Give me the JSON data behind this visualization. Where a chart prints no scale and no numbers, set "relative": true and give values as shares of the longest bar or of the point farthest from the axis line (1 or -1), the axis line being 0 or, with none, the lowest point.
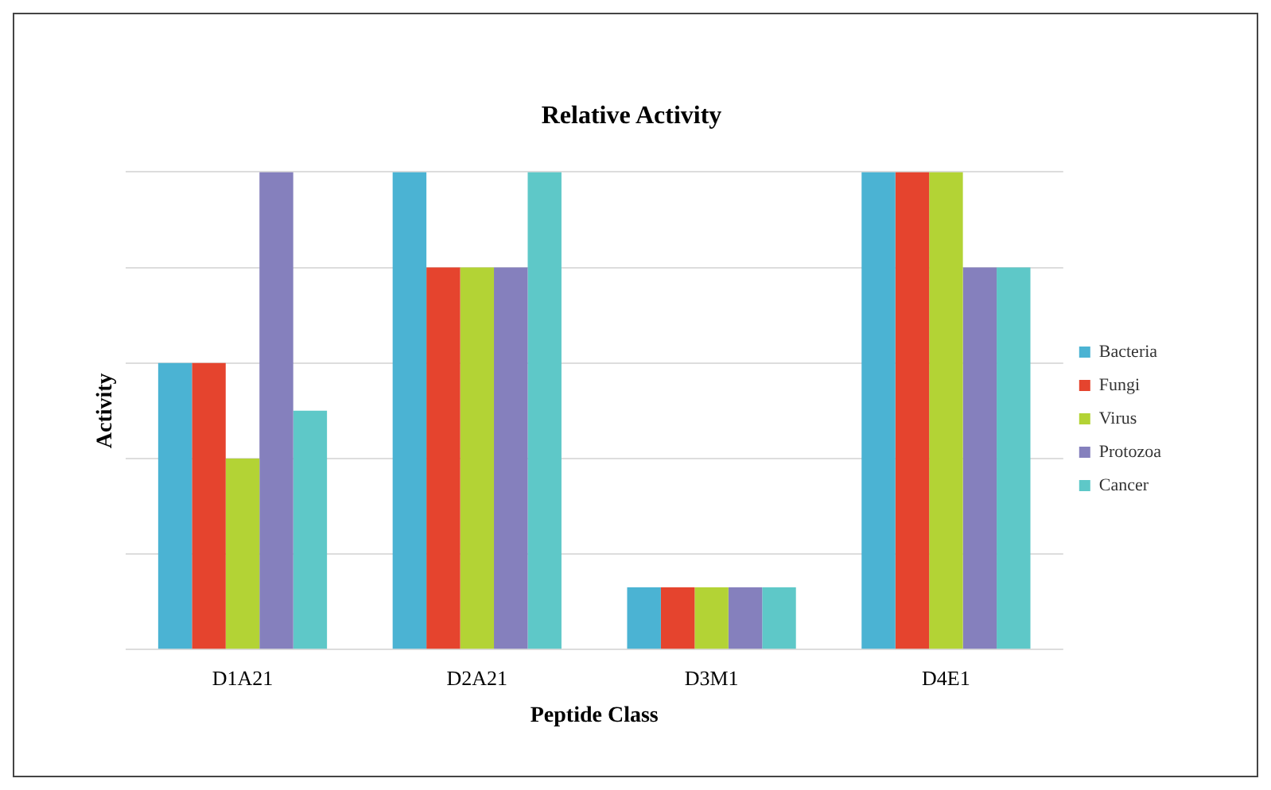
{
  "chart_data": {
    "type": "bar",
    "title": "Relative Activity",
    "xlabel": "Peptide Class",
    "ylabel": "Activity",
    "relative": true,
    "grid": "y",
    "legend": "right",
    "categories": [
      "D1A21",
      "D2A21",
      "D3M1",
      "D4E1"
    ],
    "series": [
      {
        "name": "Bacteria",
        "color": "#4bb3d3",
        "values": [
          0.6,
          1,
          0.13,
          1
        ]
      },
      {
        "name": "Fungi",
        "color": "#e5442e",
        "values": [
          0.6,
          0.8,
          0.13,
          1
        ]
      },
      {
        "name": "Virus",
        "color": "#b3d335",
        "values": [
          0.4,
          0.8,
          0.13,
          1
        ]
      },
      {
        "name": "Protozoa",
        "color": "#8580bd",
        "values": [
          1,
          0.8,
          0.13,
          0.8
        ]
      },
      {
        "name": "Cancer",
        "color": "#5ec8c8",
        "values": [
          0.5,
          1,
          0.13,
          0.8
        ]
      }
    ]
  }
}
